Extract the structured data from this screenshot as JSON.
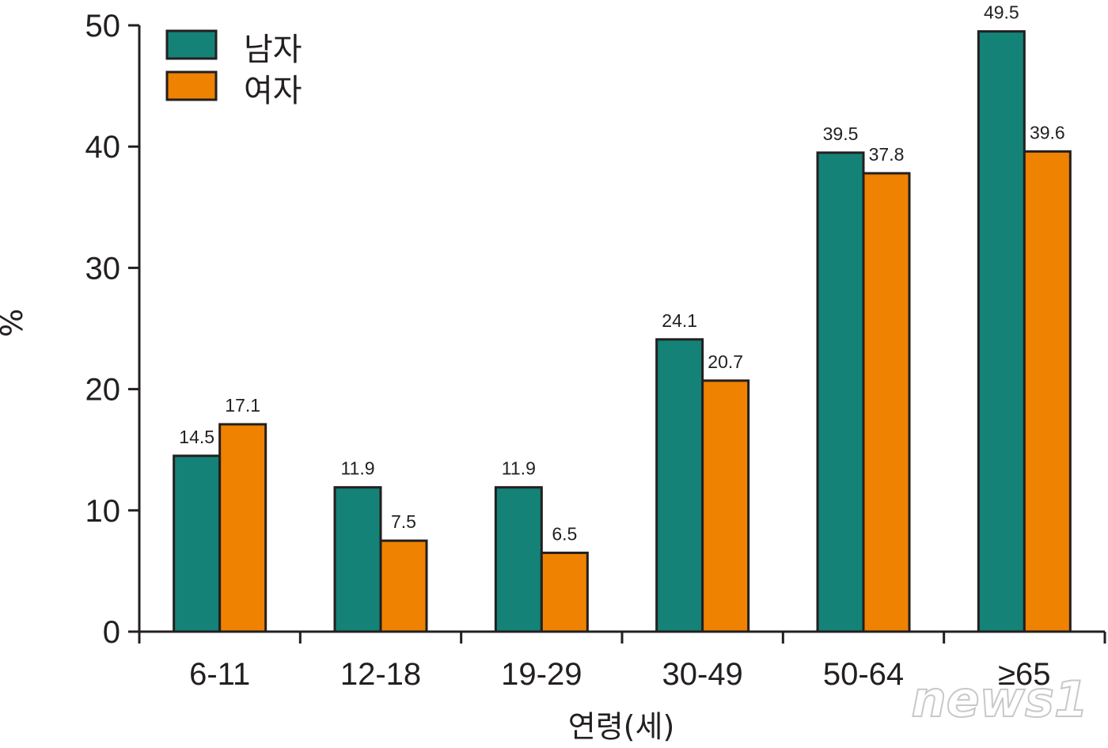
{
  "chart_data": {
    "type": "bar",
    "categories": [
      "6-11",
      "12-18",
      "19-29",
      "30-49",
      "50-64",
      "≥65"
    ],
    "series": [
      {
        "name": "남자",
        "values": [
          14.5,
          11.9,
          11.9,
          24.1,
          39.5,
          49.5
        ],
        "color": "#148277"
      },
      {
        "name": "여자",
        "values": [
          17.1,
          7.5,
          6.5,
          20.7,
          37.8,
          39.6
        ],
        "color": "#ef8200"
      }
    ],
    "data_labels": {
      "series_0": [
        "14.5",
        "11.9",
        "11.9",
        "24.1",
        "39.5",
        "49.5"
      ],
      "series_1": [
        "17.1",
        "7.5",
        "6.5",
        "20.7",
        "37.8",
        "39.6"
      ]
    },
    "xlabel": "연령(세)",
    "ylabel": "%",
    "ylim": [
      0,
      50
    ],
    "yticks": [
      0,
      10,
      20,
      30,
      40,
      50
    ],
    "grid": false,
    "legend_position": "top-left"
  },
  "watermark": "news1"
}
